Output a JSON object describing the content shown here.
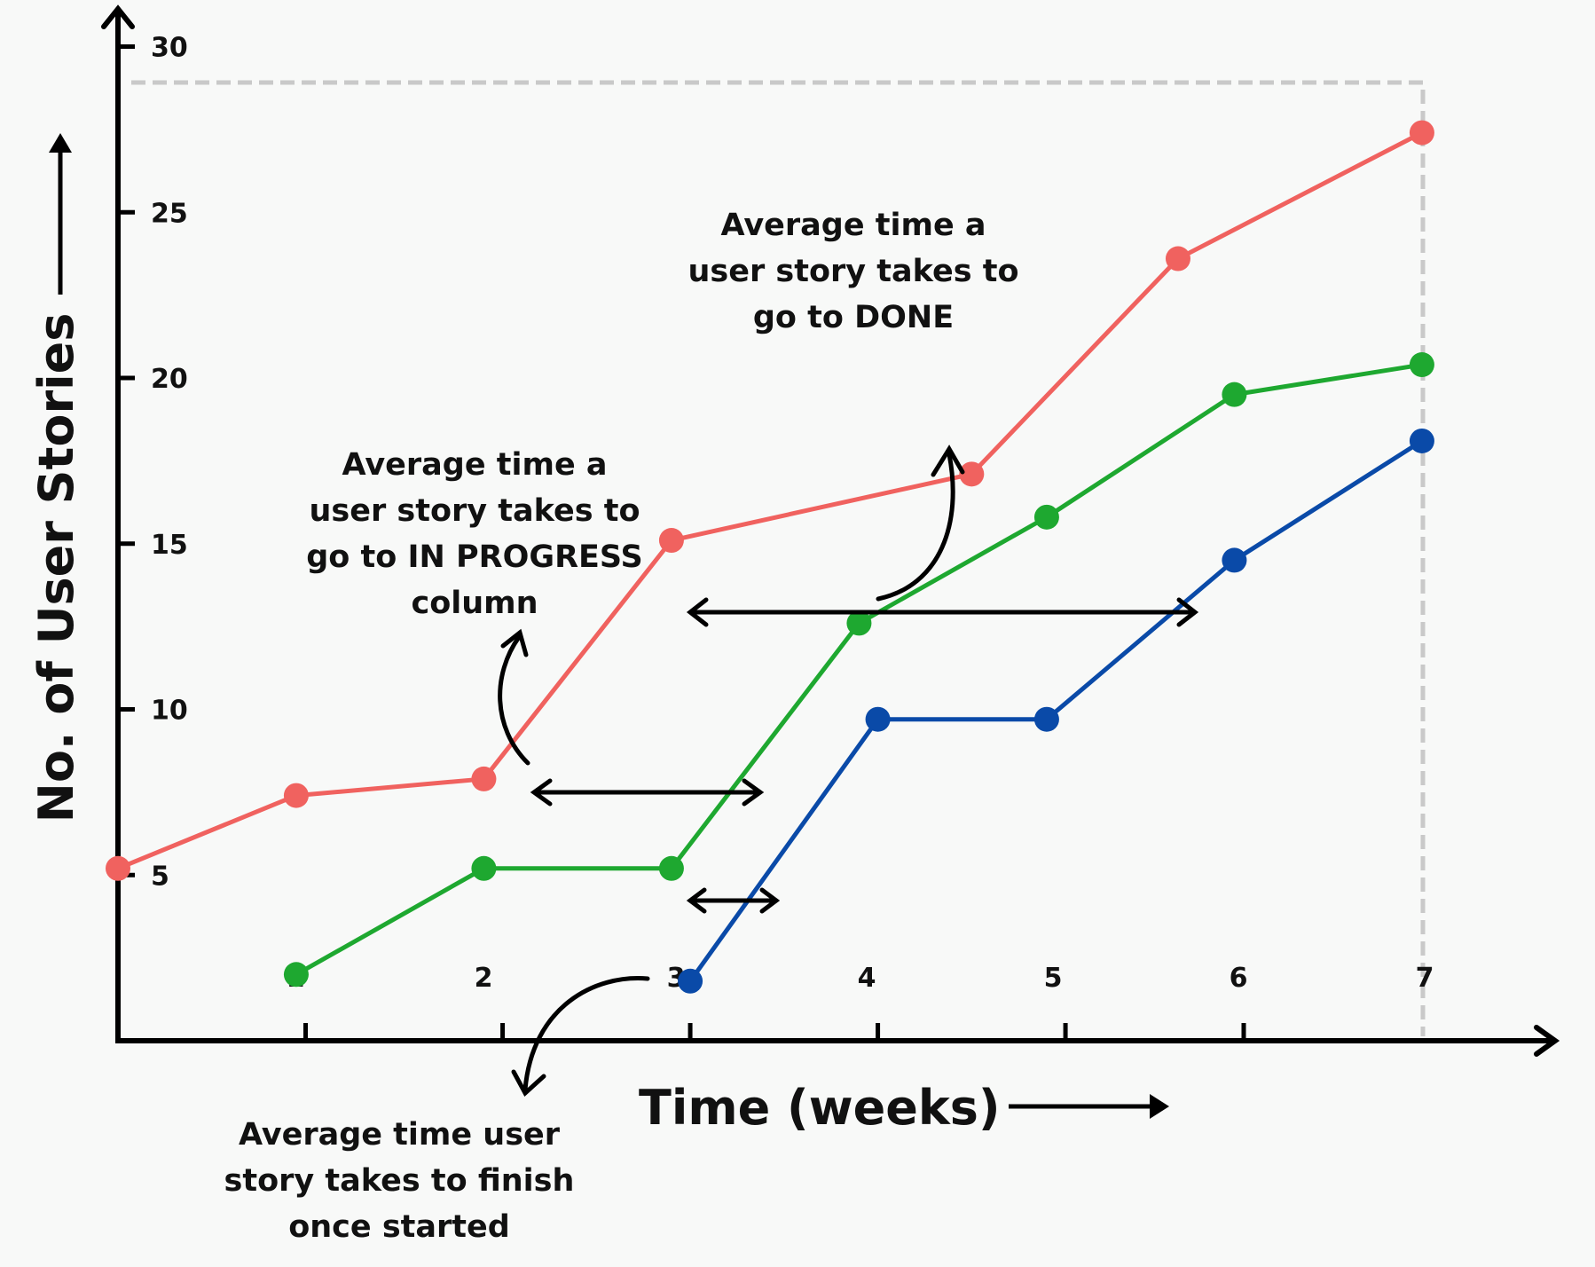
{
  "chart_data": {
    "type": "line",
    "title": "",
    "xlabel": "Time (weeks)",
    "ylabel": "No. of User Stories",
    "xlim": [
      0,
      7
    ],
    "ylim": [
      0,
      30
    ],
    "x_ticks": [
      "1",
      "2",
      "3",
      "4",
      "5",
      "6",
      "7"
    ],
    "y_ticks": [
      "5",
      "10",
      "15",
      "20",
      "25",
      "30"
    ],
    "grid": false,
    "series": [
      {
        "color": "#f0625f",
        "points": [
          [
            0.0,
            5.2
          ],
          [
            0.95,
            7.4
          ],
          [
            1.95,
            7.9
          ],
          [
            2.95,
            15.1
          ],
          [
            4.55,
            17.1
          ],
          [
            5.65,
            23.6
          ],
          [
            6.95,
            27.4
          ]
        ]
      },
      {
        "color": "#1ea830",
        "points": [
          [
            0.95,
            2.0
          ],
          [
            1.95,
            5.2
          ],
          [
            2.95,
            5.2
          ],
          [
            3.95,
            12.6
          ],
          [
            4.95,
            15.8
          ],
          [
            5.95,
            19.5
          ],
          [
            6.95,
            20.4
          ]
        ]
      },
      {
        "color": "#0a4aa8",
        "points": [
          [
            3.05,
            1.8
          ],
          [
            4.05,
            9.7
          ],
          [
            4.95,
            9.7
          ],
          [
            5.95,
            14.5
          ],
          [
            6.95,
            18.1
          ]
        ]
      }
    ],
    "annotations": [
      {
        "id": "done",
        "lines": [
          "Average time a",
          "user story takes to",
          "go to DONE"
        ]
      },
      {
        "id": "progress",
        "lines": [
          "Average time a",
          "user story takes to",
          "go to IN PROGRESS",
          "column"
        ]
      },
      {
        "id": "finish",
        "lines": [
          "Average time user",
          "story takes to finish",
          "once started"
        ]
      }
    ]
  }
}
